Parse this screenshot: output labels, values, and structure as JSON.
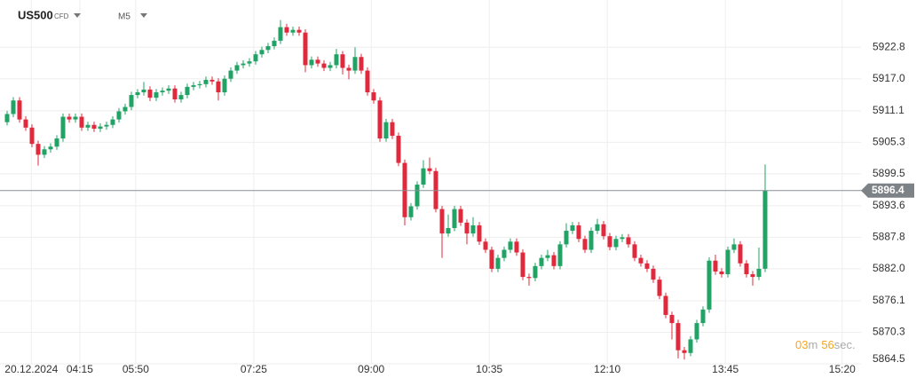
{
  "chart_data": {
    "type": "candlestick",
    "title": "US500",
    "subtitle": "CFD",
    "timeframe": "M5",
    "up_color": "#21a366",
    "down_color": "#e0293d",
    "grid": true,
    "ylim": [
      5864.5,
      5931.5
    ],
    "yticks": [
      {
        "value": 5864.5,
        "label": "5864.5"
      },
      5870.3,
      5876.1,
      {
        "value": 5882.0,
        "label": "5882.0"
      },
      5887.8,
      5893.6,
      5899.5,
      5905.3,
      5911.1,
      {
        "value": 5917.0,
        "label": "5917.0"
      },
      5922.8
    ],
    "xticks": [
      {
        "value": 3.9,
        "label": "20.12.2024"
      },
      {
        "value": 11.7,
        "label": "04:15"
      },
      {
        "value": 20.7,
        "label": "05:50"
      },
      {
        "value": 39.7,
        "label": "07:25"
      },
      {
        "value": 58.6,
        "label": "09:00"
      },
      {
        "value": 77.6,
        "label": "10:35"
      },
      {
        "value": 96.6,
        "label": "12:10"
      },
      {
        "value": 115.6,
        "label": "13:45"
      },
      {
        "value": 134.4,
        "label": "15:20"
      }
    ],
    "current_price": {
      "value": 5896.4,
      "label": "5896.4"
    },
    "timer": {
      "minutes": "03",
      "minutes_unit": "m",
      "seconds": "56",
      "seconds_unit": "sec."
    },
    "open": [
      5909.0,
      5910.5,
      5913.0,
      5909.5,
      5908.0,
      5905.0,
      5903.0,
      5904.0,
      5904.5,
      5906.0,
      5910.0,
      5909.5,
      5910.0,
      5908.0,
      5908.5,
      5907.8,
      5908.2,
      5908.5,
      5909.5,
      5911.0,
      5911.8,
      5914.0,
      5914.5,
      5915.0,
      5913.5,
      5914.5,
      5914.8,
      5915.2,
      5913.2,
      5914.0,
      5915.5,
      5915.8,
      5916.0,
      5916.8,
      5916.5,
      5914.5,
      5917.0,
      5918.5,
      5919.5,
      5919.8,
      5920.2,
      5921.5,
      5922.3,
      5923.0,
      5924.0,
      5926.5,
      5925.5,
      5926.0,
      5925.5,
      5919.5,
      5920.5,
      5919.8,
      5919.0,
      5919.5,
      5921.5,
      5919.0,
      5918.5,
      5921.0,
      5918.5,
      5914.5,
      5913.0,
      5906.0,
      5909.0,
      5906.5,
      5901.5,
      5891.5,
      5893.5,
      5897.5,
      5900.5,
      5900.0,
      5893.0,
      5888.5,
      5889.5,
      5893.0,
      5890.5,
      5888.5,
      5890.0,
      5887.0,
      5885.5,
      5882.0,
      5884.0,
      5885.5,
      5887.0,
      5885.0,
      5880.5,
      5880.3,
      5882.5,
      5884.0,
      5884.5,
      5882.5,
      5886.5,
      5889.0,
      5890.0,
      5887.5,
      5885.5,
      5889.0,
      5890.2,
      5888.0,
      5886.0,
      5887.5,
      5887.8,
      5886.5,
      5884.0,
      5883.0,
      5882.0,
      5880.0,
      5877.0,
      5873.5,
      5872.0,
      5867.0,
      5866.5,
      5869.0,
      5872.0,
      5874.5,
      5883.5,
      5881.5,
      5881.0,
      5885.5,
      5886.5,
      5883.0,
      5881.0,
      5880.5,
      5882.0
    ],
    "high": [
      5911.1,
      5913.6,
      5913.6,
      5910.1,
      5908.6,
      5905.6,
      5904.6,
      5905.1,
      5906.6,
      5910.6,
      5910.6,
      5910.6,
      5910.6,
      5909.1,
      5909.1,
      5908.8,
      5909.1,
      5910.1,
      5911.6,
      5912.4,
      5914.6,
      5915.1,
      5916.4,
      5915.6,
      5915.1,
      5915.4,
      5915.8,
      5915.8,
      5914.6,
      5916.1,
      5916.4,
      5916.6,
      5917.4,
      5917.4,
      5917.1,
      5917.6,
      5919.1,
      5920.1,
      5920.4,
      5920.8,
      5922.1,
      5922.9,
      5923.6,
      5924.6,
      5927.8,
      5927.1,
      5926.6,
      5926.6,
      5926.1,
      5921.1,
      5921.1,
      5920.4,
      5920.1,
      5922.5,
      5922.1,
      5919.6,
      5922.8,
      5921.6,
      5919.1,
      5915.1,
      5913.6,
      5909.6,
      5909.6,
      5907.1,
      5902.1,
      5894.1,
      5898.1,
      5902.0,
      5902.5,
      5900.6,
      5893.6,
      5892.0,
      5893.6,
      5893.6,
      5891.1,
      5891.5,
      5890.6,
      5887.6,
      5886.1,
      5884.6,
      5886.1,
      5887.6,
      5887.6,
      5885.6,
      5881.1,
      5883.1,
      5884.6,
      5885.5,
      5885.1,
      5887.1,
      5890.4,
      5890.6,
      5890.6,
      5888.1,
      5889.6,
      5891.2,
      5890.8,
      5888.6,
      5888.1,
      5888.4,
      5888.4,
      5887.1,
      5884.6,
      5883.6,
      5882.6,
      5880.6,
      5877.6,
      5874.1,
      5872.6,
      5867.6,
      5869.6,
      5872.6,
      5875.1,
      5884.1,
      5884.6,
      5882.1,
      5886.1,
      5887.6,
      5887.1,
      5883.6,
      5881.6,
      5885.9,
      5901.2
    ],
    "low": [
      5908.4,
      5909.9,
      5908.9,
      5907.4,
      5904.4,
      5901.0,
      5902.4,
      5903.4,
      5903.9,
      5905.4,
      5908.9,
      5908.9,
      5907.4,
      5907.4,
      5907.2,
      5907.2,
      5907.6,
      5907.9,
      5908.9,
      5910.4,
      5911.2,
      5913.4,
      5913.9,
      5912.9,
      5912.9,
      5913.9,
      5914.2,
      5912.6,
      5912.6,
      5913.4,
      5914.9,
      5915.2,
      5915.4,
      5915.9,
      5913.0,
      5913.9,
      5916.4,
      5917.9,
      5918.9,
      5919.2,
      5919.6,
      5920.9,
      5921.7,
      5922.4,
      5923.4,
      5924.9,
      5924.9,
      5924.9,
      5918.2,
      5918.9,
      5919.2,
      5918.4,
      5918.4,
      5918.9,
      5917.8,
      5916.9,
      5917.9,
      5917.9,
      5913.9,
      5912.4,
      5905.4,
      5905.4,
      5905.9,
      5900.9,
      5890.0,
      5890.9,
      5892.9,
      5896.9,
      5899.4,
      5892.4,
      5884.0,
      5887.9,
      5888.9,
      5889.9,
      5886.5,
      5887.9,
      5886.4,
      5884.9,
      5881.4,
      5881.4,
      5883.4,
      5884.9,
      5884.4,
      5879.9,
      5878.9,
      5879.7,
      5881.9,
      5883.4,
      5881.9,
      5881.9,
      5885.9,
      5888.4,
      5886.9,
      5884.9,
      5884.9,
      5888.4,
      5887.4,
      5885.4,
      5885.4,
      5886.9,
      5885.9,
      5883.4,
      5882.4,
      5881.4,
      5879.4,
      5876.4,
      5872.9,
      5869.0,
      5865.5,
      5865.3,
      5865.9,
      5868.4,
      5871.4,
      5873.9,
      5880.9,
      5880.4,
      5880.4,
      5884.9,
      5882.4,
      5880.4,
      5878.9,
      5879.9,
      5881.4
    ],
    "close": [
      5910.5,
      5913.0,
      5909.5,
      5908.0,
      5905.0,
      5903.0,
      5904.0,
      5904.5,
      5906.0,
      5910.0,
      5909.5,
      5910.0,
      5908.0,
      5908.5,
      5907.8,
      5908.2,
      5908.5,
      5909.5,
      5911.0,
      5911.8,
      5914.0,
      5914.5,
      5915.0,
      5913.5,
      5914.5,
      5914.8,
      5915.2,
      5913.2,
      5914.0,
      5915.5,
      5915.8,
      5916.0,
      5916.8,
      5916.5,
      5914.5,
      5917.0,
      5918.5,
      5919.5,
      5919.8,
      5920.2,
      5921.5,
      5922.3,
      5923.0,
      5924.0,
      5926.5,
      5925.5,
      5926.0,
      5925.5,
      5919.5,
      5920.5,
      5919.8,
      5919.0,
      5919.5,
      5921.5,
      5919.0,
      5918.5,
      5921.0,
      5918.5,
      5914.5,
      5913.0,
      5906.0,
      5909.0,
      5906.5,
      5901.5,
      5891.5,
      5893.5,
      5897.5,
      5900.5,
      5900.0,
      5893.0,
      5888.5,
      5889.5,
      5893.0,
      5890.5,
      5888.5,
      5890.0,
      5887.0,
      5885.5,
      5882.0,
      5884.0,
      5885.5,
      5887.0,
      5885.0,
      5880.5,
      5880.3,
      5882.5,
      5884.0,
      5884.5,
      5882.5,
      5886.5,
      5889.0,
      5890.0,
      5887.5,
      5885.5,
      5889.0,
      5890.2,
      5888.0,
      5886.0,
      5887.5,
      5887.8,
      5886.5,
      5884.0,
      5883.0,
      5882.0,
      5880.0,
      5877.0,
      5873.5,
      5872.0,
      5867.0,
      5866.5,
      5869.0,
      5872.0,
      5874.5,
      5883.5,
      5881.5,
      5881.0,
      5885.5,
      5886.5,
      5883.0,
      5881.0,
      5880.5,
      5882.0,
      5896.4
    ]
  }
}
